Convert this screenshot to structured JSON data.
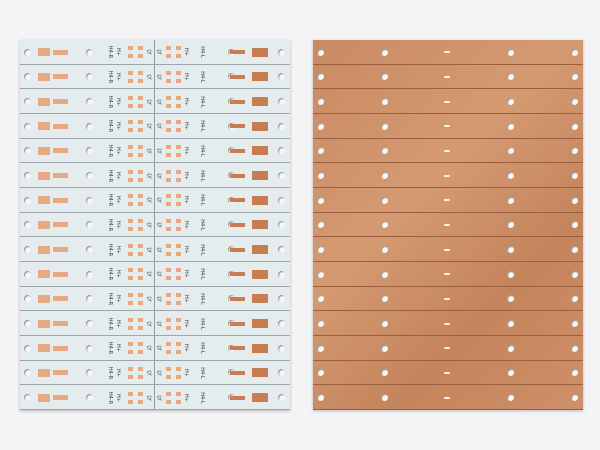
{
  "scene": {
    "left_board": {
      "material": "white aluminum PCB",
      "strip_count": 15,
      "color": "#e4ecee",
      "pad_color": "#e8a982"
    },
    "right_board": {
      "material": "copper base",
      "strip_count": 15,
      "color": "#cd9068"
    },
    "silkscreen": {
      "left_label": "H4-R",
      "center_label": "H+",
      "right_label": "H4-L",
      "mid_label": "LY"
    },
    "background_color": "#f4f4f6"
  }
}
